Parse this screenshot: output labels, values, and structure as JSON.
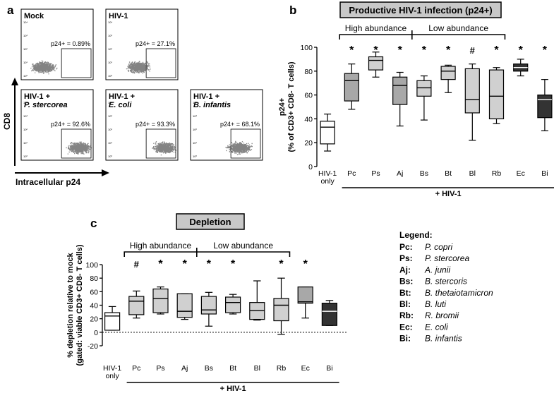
{
  "panel_labels": {
    "a": "a",
    "b": "b",
    "c": "c"
  },
  "flow": {
    "y_axis_label": "CD8",
    "x_axis_label": "Intracellular p24",
    "tick_labels": [
      "10⁰",
      "10¹",
      "10²",
      "10³",
      "10⁴"
    ],
    "panels": [
      {
        "line1": "Mock",
        "line2": "",
        "gate": "p24+ = 0.89%",
        "pct": 0.89
      },
      {
        "line1": "HIV-1",
        "line2": "",
        "gate": "p24+ = 27.1%",
        "pct": 27.1
      },
      {
        "line1": "HIV-1 +",
        "line2": "P. stercorea",
        "gate": "p24+ = 92.6%",
        "pct": 92.6
      },
      {
        "line1": "HIV-1 +",
        "line2": "E. coli",
        "gate": "p24+ = 93.3%",
        "pct": 93.3
      },
      {
        "line1": "HIV-1 +",
        "line2": "B. infantis",
        "gate": "p24+ = 68.1%",
        "pct": 68.1
      }
    ]
  },
  "legend": {
    "title": "Legend:",
    "items": [
      {
        "abbr": "Pc:",
        "name": "P. copri"
      },
      {
        "abbr": "Ps:",
        "name": "P. stercorea"
      },
      {
        "abbr": "Aj:",
        "name": "A. junii"
      },
      {
        "abbr": "Bs:",
        "name": "B. stercoris"
      },
      {
        "abbr": "Bt:",
        "name": "B. thetaiotamicron"
      },
      {
        "abbr": "Bl:",
        "name": "B. luti"
      },
      {
        "abbr": "Rb:",
        "name": "R. bromii"
      },
      {
        "abbr": "Ec:",
        "name": "E. coli"
      },
      {
        "abbr": "Bi:",
        "name": "B. infantis"
      }
    ]
  },
  "colors": {
    "white": "#ffffff",
    "light": "#d0d0d0",
    "mid": "#a8a8a8",
    "dark": "#333333",
    "title_bg": "#c8c8c8"
  },
  "chart_data": [
    {
      "type": "boxplot",
      "title": "Productive HIV-1 infection (p24+)",
      "ylabel_line1": "p24+",
      "ylabel_line2": "(% of CD3+ CD8- T cells)",
      "xlabel": "+ HIV-1",
      "ylim": [
        0,
        100
      ],
      "yticks": [
        "0",
        "20",
        "40",
        "60",
        "80",
        "100"
      ],
      "group_high": "High abundance",
      "group_low": "Low abundance",
      "baseline": null,
      "categories": [
        {
          "label": "HIV-1",
          "label2": "only",
          "sig": "",
          "fill": "white",
          "min": 13,
          "q1": 19,
          "median": 33,
          "q3": 38,
          "max": 44
        },
        {
          "label": "Pc",
          "label2": "",
          "sig": "*",
          "fill": "mid",
          "min": 48,
          "q1": 55,
          "median": 72,
          "q3": 78,
          "max": 86
        },
        {
          "label": "Ps",
          "label2": "",
          "sig": "*",
          "fill": "light",
          "min": 75,
          "q1": 81,
          "median": 89,
          "q3": 92,
          "max": 96
        },
        {
          "label": "Aj",
          "label2": "",
          "sig": "*",
          "fill": "mid",
          "min": 34,
          "q1": 52,
          "median": 68,
          "q3": 75,
          "max": 79
        },
        {
          "label": "Bs",
          "label2": "",
          "sig": "*",
          "fill": "light",
          "min": 39,
          "q1": 59,
          "median": 66,
          "q3": 72,
          "max": 76
        },
        {
          "label": "Bt",
          "label2": "",
          "sig": "*",
          "fill": "light",
          "min": 62,
          "q1": 73,
          "median": 80,
          "q3": 84,
          "max": 85
        },
        {
          "label": "Bl",
          "label2": "",
          "sig": "#",
          "fill": "light",
          "min": 22,
          "q1": 45,
          "median": 56,
          "q3": 82,
          "max": 86
        },
        {
          "label": "Rb",
          "label2": "",
          "sig": "*",
          "fill": "light",
          "min": 36,
          "q1": 40,
          "median": 59,
          "q3": 81,
          "max": 83
        },
        {
          "label": "Ec",
          "label2": "",
          "sig": "*",
          "fill": "dark",
          "min": 76,
          "q1": 80,
          "median": 83,
          "q3": 86,
          "max": 90
        },
        {
          "label": "Bi",
          "label2": "",
          "sig": "*",
          "fill": "dark",
          "min": 30,
          "q1": 41,
          "median": 56,
          "q3": 60,
          "max": 73
        }
      ]
    },
    {
      "type": "boxplot",
      "title": "Depletion",
      "ylabel_line1": "% depletion relative to mock",
      "ylabel_line2": "(gated: viable CD3+ CD8- T cells)",
      "xlabel": "+ HIV-1",
      "ylim": [
        -20,
        100
      ],
      "yticks": [
        "-20",
        "0",
        "20",
        "40",
        "60",
        "80",
        "100"
      ],
      "group_high": "High abundance",
      "group_low": "Low abundance",
      "baseline": 0,
      "categories": [
        {
          "label": "HIV-1",
          "label2": "only",
          "sig": "",
          "fill": "white",
          "min": 3,
          "q1": 3,
          "median": 24,
          "q3": 29,
          "max": 38
        },
        {
          "label": "Pc",
          "label2": "",
          "sig": "#",
          "fill": "light",
          "min": 21,
          "q1": 26,
          "median": 46,
          "q3": 53,
          "max": 61
        },
        {
          "label": "Ps",
          "label2": "",
          "sig": "*",
          "fill": "light",
          "min": 27,
          "q1": 29,
          "median": 50,
          "q3": 64,
          "max": 67
        },
        {
          "label": "Aj",
          "label2": "",
          "sig": "*",
          "fill": "light",
          "min": 19,
          "q1": 22,
          "median": 31,
          "q3": 57,
          "max": 57
        },
        {
          "label": "Bs",
          "label2": "",
          "sig": "*",
          "fill": "light",
          "min": 9,
          "q1": 27,
          "median": 33,
          "q3": 53,
          "max": 59
        },
        {
          "label": "Bt",
          "label2": "",
          "sig": "*",
          "fill": "light",
          "min": 27,
          "q1": 29,
          "median": 44,
          "q3": 52,
          "max": 56
        },
        {
          "label": "Bl",
          "label2": "",
          "sig": "",
          "fill": "light",
          "min": 18,
          "q1": 19,
          "median": 32,
          "q3": 44,
          "max": 76
        },
        {
          "label": "Rb",
          "label2": "",
          "sig": "*",
          "fill": "light",
          "min": -3,
          "q1": 17,
          "median": 40,
          "q3": 50,
          "max": 80
        },
        {
          "label": "Ec",
          "label2": "",
          "sig": "*",
          "fill": "mid",
          "min": 21,
          "q1": 43,
          "median": 45,
          "q3": 67,
          "max": 67
        },
        {
          "label": "Bi",
          "label2": "",
          "sig": "",
          "fill": "dark",
          "min": 10,
          "q1": 10,
          "median": 31,
          "q3": 43,
          "max": 47
        }
      ]
    }
  ]
}
